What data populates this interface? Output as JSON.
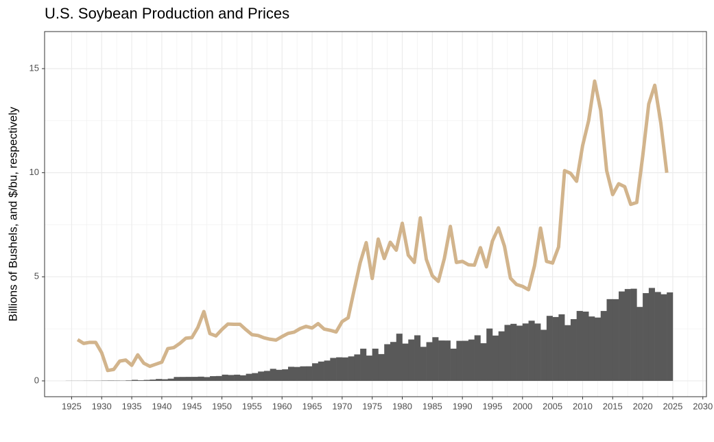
{
  "chart_data": {
    "type": "combo",
    "title": "U.S. Soybean Production and Prices",
    "y_label": "Billions of Bushels, and $/bu, respectively",
    "xlim": [
      1920.5,
      2030.6
    ],
    "xticks": [
      1925,
      1930,
      1935,
      1940,
      1945,
      1950,
      1955,
      1960,
      1965,
      1970,
      1975,
      1980,
      1985,
      1990,
      1995,
      2000,
      2005,
      2010,
      2015,
      2020,
      2025,
      2030
    ],
    "ylim": [
      -0.76,
      16.78
    ],
    "yticks": [
      0,
      5,
      10,
      15
    ],
    "grid": true,
    "series": [
      {
        "type": "bar",
        "color": "#595959",
        "x": [
          1924,
          1925,
          1926,
          1927,
          1928,
          1929,
          1930,
          1931,
          1932,
          1933,
          1934,
          1935,
          1936,
          1937,
          1938,
          1939,
          1940,
          1941,
          1942,
          1943,
          1944,
          1945,
          1946,
          1947,
          1948,
          1949,
          1950,
          1951,
          1952,
          1953,
          1954,
          1955,
          1956,
          1957,
          1958,
          1959,
          1960,
          1961,
          1962,
          1963,
          1964,
          1965,
          1966,
          1967,
          1968,
          1969,
          1970,
          1971,
          1972,
          1973,
          1974,
          1975,
          1976,
          1977,
          1978,
          1979,
          1980,
          1981,
          1982,
          1983,
          1984,
          1985,
          1986,
          1987,
          1988,
          1989,
          1990,
          1991,
          1992,
          1993,
          1994,
          1995,
          1996,
          1997,
          1998,
          1999,
          2000,
          2001,
          2002,
          2003,
          2004,
          2005,
          2006,
          2007,
          2008,
          2009,
          2010,
          2011,
          2012,
          2013,
          2014,
          2015,
          2016,
          2017,
          2018,
          2019,
          2020,
          2021,
          2022,
          2023,
          2024
        ],
        "values": [
          0.005,
          0.005,
          0.005,
          0.007,
          0.008,
          0.009,
          0.014,
          0.017,
          0.015,
          0.013,
          0.023,
          0.049,
          0.03,
          0.046,
          0.062,
          0.091,
          0.078,
          0.107,
          0.187,
          0.19,
          0.192,
          0.193,
          0.203,
          0.183,
          0.227,
          0.234,
          0.299,
          0.283,
          0.298,
          0.269,
          0.341,
          0.374,
          0.449,
          0.48,
          0.58,
          0.532,
          0.555,
          0.678,
          0.669,
          0.699,
          0.701,
          0.846,
          0.928,
          0.976,
          1.103,
          1.133,
          1.127,
          1.176,
          1.271,
          1.547,
          1.216,
          1.548,
          1.288,
          1.762,
          1.87,
          2.268,
          1.792,
          1.989,
          2.19,
          1.636,
          1.861,
          2.099,
          1.94,
          1.938,
          1.549,
          1.924,
          1.926,
          1.987,
          2.19,
          1.809,
          2.515,
          2.177,
          2.38,
          2.689,
          2.741,
          2.654,
          2.758,
          2.891,
          2.756,
          2.454,
          3.124,
          3.068,
          3.197,
          2.677,
          2.967,
          3.359,
          3.329,
          3.094,
          3.042,
          3.358,
          3.927,
          3.926,
          4.296,
          4.412,
          4.428,
          3.552,
          4.216,
          4.465,
          4.27,
          4.162,
          4.25
        ]
      },
      {
        "type": "line",
        "color": "#d2b48c",
        "x": [
          1926,
          1927,
          1928,
          1929,
          1930,
          1931,
          1932,
          1933,
          1934,
          1935,
          1936,
          1937,
          1938,
          1939,
          1940,
          1941,
          1942,
          1943,
          1944,
          1945,
          1946,
          1947,
          1948,
          1949,
          1950,
          1951,
          1952,
          1953,
          1954,
          1955,
          1956,
          1957,
          1958,
          1959,
          1960,
          1961,
          1962,
          1963,
          1964,
          1965,
          1966,
          1967,
          1968,
          1969,
          1970,
          1971,
          1972,
          1973,
          1974,
          1975,
          1976,
          1977,
          1978,
          1979,
          1980,
          1981,
          1982,
          1983,
          1984,
          1985,
          1986,
          1987,
          1988,
          1989,
          1990,
          1991,
          1992,
          1993,
          1994,
          1995,
          1996,
          1997,
          1998,
          1999,
          2000,
          2001,
          2002,
          2003,
          2004,
          2005,
          2006,
          2007,
          2008,
          2009,
          2010,
          2011,
          2012,
          2013,
          2014,
          2015,
          2016,
          2017,
          2018,
          2019,
          2020,
          2021,
          2022,
          2023,
          2024
        ],
        "values": [
          1.98,
          1.8,
          1.85,
          1.85,
          1.35,
          0.5,
          0.55,
          0.95,
          1.0,
          0.75,
          1.25,
          0.85,
          0.7,
          0.8,
          0.9,
          1.55,
          1.6,
          1.8,
          2.05,
          2.08,
          2.57,
          3.33,
          2.27,
          2.16,
          2.47,
          2.73,
          2.72,
          2.72,
          2.46,
          2.22,
          2.18,
          2.07,
          2.0,
          1.96,
          2.13,
          2.28,
          2.34,
          2.51,
          2.62,
          2.54,
          2.75,
          2.49,
          2.43,
          2.35,
          2.85,
          3.03,
          4.37,
          5.68,
          6.64,
          4.92,
          6.81,
          5.88,
          6.66,
          6.28,
          7.57,
          6.04,
          5.69,
          7.83,
          5.84,
          5.05,
          4.78,
          5.88,
          7.42,
          5.69,
          5.74,
          5.58,
          5.56,
          6.4,
          5.48,
          6.72,
          7.35,
          6.47,
          4.93,
          4.63,
          4.54,
          4.38,
          5.53,
          7.34,
          5.74,
          5.66,
          6.43,
          10.1,
          9.97,
          9.59,
          11.3,
          12.5,
          14.4,
          13.0,
          10.1,
          8.95,
          9.47,
          9.33,
          8.48,
          8.57,
          10.8,
          13.3,
          14.2,
          12.4,
          10.0
        ]
      }
    ]
  }
}
